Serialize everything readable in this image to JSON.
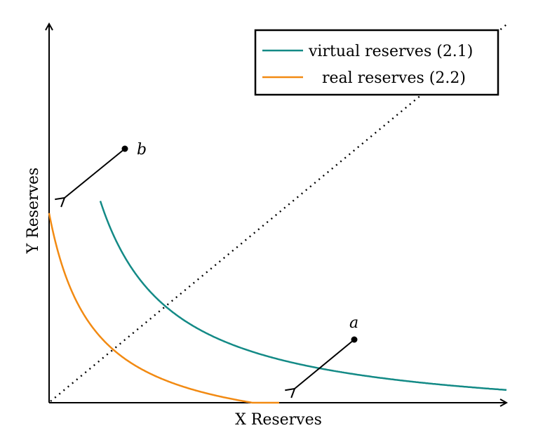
{
  "axes": {
    "xlabel": "X Reserves",
    "ylabel": "Y Reserves"
  },
  "legend": {
    "items": [
      {
        "label": "virtual reserves (2.1)",
        "color": "#138a86"
      },
      {
        "label": "real reserves (2.2)",
        "color": "#f28a12"
      }
    ]
  },
  "points": {
    "a": {
      "label": "a"
    },
    "b": {
      "label": "b"
    }
  },
  "colors": {
    "virtual": "#138a86",
    "real": "#f28a12",
    "axis": "#000000"
  }
}
